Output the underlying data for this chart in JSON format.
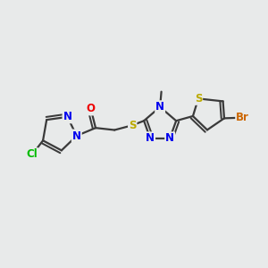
{
  "background_color": "#e8eaea",
  "bond_color": "#3a3a3a",
  "bond_width": 1.6,
  "atom_colors": {
    "N": "#0000ee",
    "O": "#ee0000",
    "S": "#bbaa00",
    "Cl": "#00bb00",
    "Br": "#cc6600",
    "C": "#000000"
  },
  "font_size": 8.5,
  "figsize": [
    3.0,
    3.0
  ],
  "dpi": 100
}
